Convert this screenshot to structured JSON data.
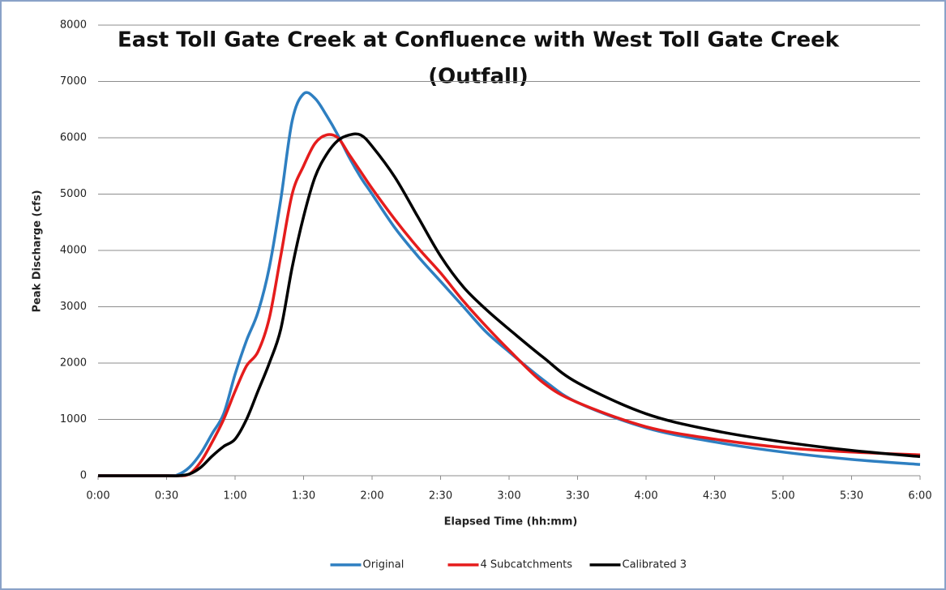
{
  "chart_data": {
    "type": "line",
    "title": [
      "East Toll Gate Creek at Confluence with West Toll Gate Creek",
      "(Outfall)"
    ],
    "x_label": "Elapsed Time (hh:mm)",
    "y_label": "Peak Discharge (cfs)",
    "x": [
      0,
      30,
      35,
      40,
      45,
      50,
      55,
      60,
      65,
      70,
      75,
      80,
      85,
      90,
      95,
      100,
      105,
      110,
      115,
      120,
      130,
      140,
      150,
      160,
      170,
      180,
      195,
      210,
      240,
      270,
      300,
      330,
      360
    ],
    "series": [
      {
        "name": "Original",
        "color": "#2e7fc1",
        "values": [
          0,
          0,
          20,
          150,
          400,
          750,
          1100,
          1800,
          2400,
          2900,
          3700,
          4900,
          6300,
          6780,
          6700,
          6400,
          6050,
          5650,
          5300,
          5000,
          4400,
          3900,
          3450,
          3000,
          2550,
          2200,
          1700,
          1300,
          850,
          600,
          420,
          290,
          200
        ]
      },
      {
        "name": "4 Subcatchments",
        "color": "#e51c1c",
        "values": [
          0,
          0,
          0,
          30,
          250,
          600,
          1000,
          1500,
          1950,
          2200,
          2800,
          3900,
          5000,
          5500,
          5900,
          6050,
          6000,
          5700,
          5400,
          5100,
          4550,
          4050,
          3600,
          3100,
          2650,
          2230,
          1650,
          1300,
          870,
          650,
          500,
          420,
          370
        ]
      },
      {
        "name": "Calibrated 3",
        "color": "#000000",
        "values": [
          0,
          0,
          0,
          30,
          150,
          350,
          520,
          650,
          1000,
          1500,
          2000,
          2600,
          3700,
          4600,
          5300,
          5700,
          5950,
          6050,
          6050,
          5850,
          5300,
          4600,
          3900,
          3350,
          2950,
          2600,
          2100,
          1650,
          1100,
          800,
          600,
          450,
          340
        ]
      }
    ],
    "xlim": [
      0,
      360
    ],
    "xticks": [
      {
        "value": 0,
        "label": "0:00"
      },
      {
        "value": 30,
        "label": "0:30"
      },
      {
        "value": 60,
        "label": "1:00"
      },
      {
        "value": 90,
        "label": "1:30"
      },
      {
        "value": 120,
        "label": "2:00"
      },
      {
        "value": 150,
        "label": "2:30"
      },
      {
        "value": 180,
        "label": "3:00"
      },
      {
        "value": 210,
        "label": "3:30"
      },
      {
        "value": 240,
        "label": "4:00"
      },
      {
        "value": 270,
        "label": "4:30"
      },
      {
        "value": 300,
        "label": "5:00"
      },
      {
        "value": 330,
        "label": "5:30"
      },
      {
        "value": 360,
        "label": "6:00"
      }
    ],
    "ylim": [
      0,
      8000
    ],
    "yticks": [
      0,
      1000,
      2000,
      3000,
      4000,
      5000,
      6000,
      7000,
      8000
    ],
    "grid": true,
    "legend": "bottom"
  }
}
